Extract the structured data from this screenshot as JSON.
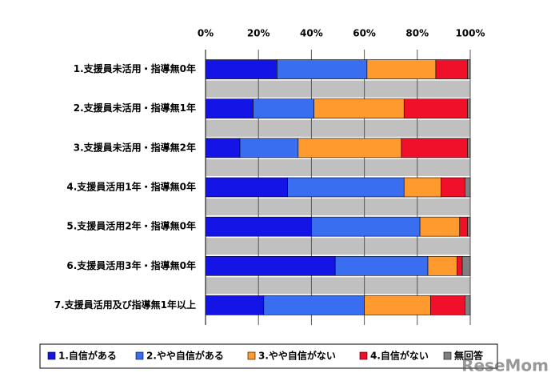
{
  "chart_data": {
    "type": "stacked-barh",
    "categories": [
      "1.支援員未活用・指導無0年",
      "2.支援員未活用・指導無1年",
      "3.支援員未活用・指導無2年",
      "4.支援員活用1年・指導無0年",
      "5.支援員活用2年・指導無0年",
      "6.支援員活用3年・指導無0年",
      "7.支援員活用及び指導無1年以上"
    ],
    "series": [
      {
        "name": "1.自信がある",
        "color": "#1414e6",
        "values": [
          27,
          18,
          13,
          31,
          40,
          49,
          22
        ]
      },
      {
        "name": "2.やや自信がある",
        "color": "#3a6ef0",
        "values": [
          34,
          23,
          22,
          44,
          41,
          35,
          38
        ]
      },
      {
        "name": "3.やや自信がない",
        "color": "#ff9a2e",
        "values": [
          26,
          34,
          39,
          14,
          15,
          11,
          25
        ]
      },
      {
        "name": "4.自信がない",
        "color": "#f0102a",
        "values": [
          12,
          24,
          25,
          9,
          3,
          2,
          13
        ]
      },
      {
        "name": "無回答",
        "color": "#808080",
        "values": [
          1,
          1,
          1,
          2,
          1,
          3,
          2
        ]
      }
    ],
    "xlim": [
      0,
      100
    ],
    "xticks": [
      {
        "value": 0,
        "label": "0%"
      },
      {
        "value": 20,
        "label": "20%"
      },
      {
        "value": 40,
        "label": "40%"
      },
      {
        "value": 60,
        "label": "60%"
      },
      {
        "value": 80,
        "label": "80%"
      },
      {
        "value": 100,
        "label": "100%"
      }
    ],
    "grid": true,
    "legend": "bottom",
    "watermark": "ReseMom"
  }
}
